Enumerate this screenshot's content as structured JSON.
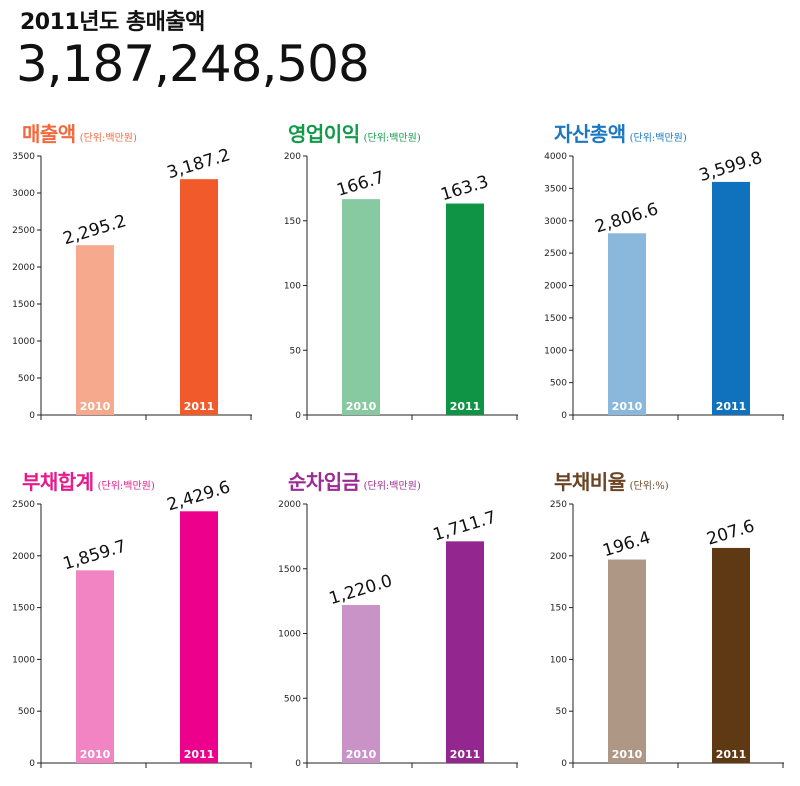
{
  "header": {
    "subtitle": "2011년도 총매출액",
    "total": "3,187,248,508"
  },
  "chart_data": [
    {
      "type": "bar",
      "title": "매출액",
      "unit": "(단위:백만원)",
      "title_color": "#f26a3c",
      "categories": [
        "2010",
        "2011"
      ],
      "values": [
        2295.2,
        3187.2
      ],
      "value_labels": [
        "2,295.2",
        "3,187.2"
      ],
      "colors": [
        "#f7a98e",
        "#f15a2a"
      ],
      "ylim": [
        0,
        3500
      ],
      "yticks": [
        0,
        500,
        1000,
        1500,
        2000,
        2500,
        3000,
        3500
      ]
    },
    {
      "type": "bar",
      "title": "영업이익",
      "unit": "(단위:백만원)",
      "title_color": "#129a4b",
      "categories": [
        "2010",
        "2011"
      ],
      "values": [
        166.7,
        163.3
      ],
      "value_labels": [
        "166.7",
        "163.3"
      ],
      "colors": [
        "#87c9a1",
        "#0e9444"
      ],
      "ylim": [
        0,
        200
      ],
      "yticks": [
        0,
        50,
        100,
        150,
        200
      ]
    },
    {
      "type": "bar",
      "title": "자산총액",
      "unit": "(단위:백만원)",
      "title_color": "#1a78c2",
      "categories": [
        "2010",
        "2011"
      ],
      "values": [
        2806.6,
        3599.8
      ],
      "value_labels": [
        "2,806.6",
        "3,599.8"
      ],
      "colors": [
        "#8ab8dc",
        "#1072bc"
      ],
      "ylim": [
        0,
        4000
      ],
      "yticks": [
        0,
        500,
        1000,
        1500,
        2000,
        2500,
        3000,
        3500,
        4000
      ]
    },
    {
      "type": "bar",
      "title": "부채합계",
      "unit": "(단위:백만원)",
      "title_color": "#e6198d",
      "categories": [
        "2010",
        "2011"
      ],
      "values": [
        1859.7,
        2429.6
      ],
      "value_labels": [
        "1,859.7",
        "2,429.6"
      ],
      "colors": [
        "#f384c4",
        "#ec008c"
      ],
      "ylim": [
        0,
        2500
      ],
      "yticks": [
        0,
        500,
        1000,
        1500,
        2000,
        2500
      ]
    },
    {
      "type": "bar",
      "title": "순차입금",
      "unit": "(단위:백만원)",
      "title_color": "#9b2b94",
      "categories": [
        "2010",
        "2011"
      ],
      "values": [
        1220.0,
        1711.7
      ],
      "value_labels": [
        "1,220.0",
        "1,711.7"
      ],
      "colors": [
        "#c993c7",
        "#93278f"
      ],
      "ylim": [
        0,
        2000
      ],
      "yticks": [
        0,
        500,
        1000,
        1500,
        2000
      ]
    },
    {
      "type": "bar",
      "title": "부채비율",
      "unit": "(단위:%)",
      "title_color": "#6b4423",
      "categories": [
        "2010",
        "2011"
      ],
      "values": [
        196.4,
        207.6
      ],
      "value_labels": [
        "196.4",
        "207.6"
      ],
      "colors": [
        "#ae9885",
        "#5f3913"
      ],
      "ylim": [
        0,
        250
      ],
      "yticks": [
        0,
        50,
        100,
        150,
        200,
        250
      ]
    }
  ]
}
